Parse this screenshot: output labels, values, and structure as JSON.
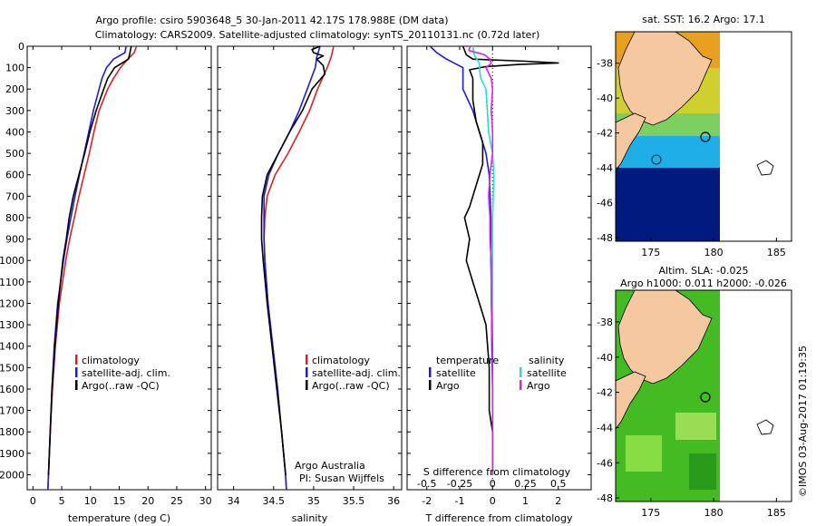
{
  "header": {
    "line1": "Argo profile: csiro 5903648_5 30-Jan-2011 42.17S 178.988E (DM data)",
    "line2": "Climatology: CARS2009. Satellite-adjusted climatology: synTS_20110131.nc (0.72d later)"
  },
  "colors": {
    "climatology": "#e02020",
    "satellite": "#1a1aee",
    "argo": "#000000",
    "temp_diff_argo": "#000000",
    "sal_satellite": "#22dddd",
    "sal_argo": "#dd22dd",
    "sst_warm": "#e8a020",
    "sst_cold": "#001a80",
    "sla_green": "#44bb22",
    "land": "#f5c8a0"
  },
  "chart_data": [
    {
      "id": "temperature",
      "type": "line",
      "xlabel": "temperature (deg C)",
      "ylabel": "",
      "xlim": [
        -1,
        31
      ],
      "ylim": [
        2070,
        0
      ],
      "x_ticks": [
        0,
        5,
        10,
        15,
        20,
        25,
        30
      ],
      "y_ticks": [
        0,
        100,
        200,
        300,
        400,
        500,
        600,
        700,
        800,
        900,
        1000,
        1100,
        1200,
        1300,
        1400,
        1500,
        1600,
        1700,
        1800,
        1900,
        2000
      ],
      "legend": [
        "climatology",
        "satellite-adj. clim.",
        "Argo(..raw -QC)"
      ],
      "legend_position": "bottom-right",
      "series": [
        {
          "name": "climatology",
          "color_key": "climatology",
          "depth": [
            0,
            30,
            60,
            100,
            150,
            200,
            300,
            400,
            500,
            600,
            700,
            800,
            900,
            1000,
            1200,
            1400,
            1600,
            1800,
            2000,
            2070
          ],
          "values": [
            18.0,
            17.6,
            16.5,
            15.2,
            14.0,
            13.0,
            11.5,
            10.6,
            9.8,
            8.9,
            8.0,
            7.2,
            6.4,
            5.7,
            4.6,
            3.9,
            3.4,
            3.0,
            2.7,
            2.6
          ]
        },
        {
          "name": "satellite-adj. clim.",
          "color_key": "satellite",
          "depth": [
            0,
            30,
            60,
            100,
            150,
            200,
            300,
            400,
            500,
            600,
            700,
            800,
            900,
            1000,
            1200,
            1400,
            1600,
            1800,
            2000,
            2070
          ],
          "values": [
            16.2,
            16.0,
            14.0,
            12.8,
            12.0,
            11.5,
            10.5,
            9.7,
            8.9,
            8.1,
            7.3,
            6.6,
            5.9,
            5.3,
            4.3,
            3.7,
            3.3,
            3.0,
            2.7,
            2.6
          ]
        },
        {
          "name": "Argo(..raw -QC)",
          "color_key": "argo",
          "depth": [
            0,
            25,
            60,
            100,
            150,
            200,
            300,
            400,
            500,
            600,
            700,
            800,
            900,
            1000,
            1200,
            1400,
            1600,
            1800,
            2000
          ],
          "values": [
            17.1,
            16.9,
            16.6,
            14.2,
            13.0,
            12.3,
            11.0,
            9.9,
            9.0,
            8.0,
            7.0,
            6.3,
            5.8,
            5.2,
            4.4,
            3.8,
            3.3,
            3.0,
            2.7
          ]
        }
      ]
    },
    {
      "id": "salinity",
      "type": "line",
      "xlabel": "salinity",
      "ylabel": "",
      "xlim": [
        33.8,
        36.1
      ],
      "ylim": [
        2070,
        0
      ],
      "x_ticks": [
        34,
        34.5,
        35,
        35.5,
        36
      ],
      "legend": [
        "climatology",
        "satellite-adj. clim.",
        "Argo(..raw -QC)"
      ],
      "legend_position": "bottom-right",
      "annotation": [
        "Argo Australia",
        "PI: Susan Wijffels"
      ],
      "series": [
        {
          "name": "climatology",
          "color_key": "climatology",
          "depth": [
            0,
            50,
            100,
            200,
            300,
            400,
            500,
            600,
            700,
            800,
            900,
            1000,
            1200,
            1400,
            1600,
            1800,
            2000,
            2070
          ],
          "values": [
            35.25,
            35.22,
            35.17,
            35.05,
            34.95,
            34.82,
            34.68,
            34.52,
            34.42,
            34.39,
            34.38,
            34.39,
            34.43,
            34.49,
            34.55,
            34.6,
            34.65,
            34.66
          ]
        },
        {
          "name": "satellite-adj. clim.",
          "color_key": "satellite",
          "depth": [
            0,
            50,
            100,
            200,
            300,
            400,
            500,
            600,
            700,
            800,
            900,
            1000,
            1200,
            1400,
            1600,
            1800,
            2000,
            2070
          ],
          "values": [
            35.08,
            35.04,
            35.02,
            34.92,
            34.82,
            34.7,
            34.56,
            34.44,
            34.38,
            34.38,
            34.38,
            34.39,
            34.43,
            34.49,
            34.55,
            34.6,
            34.65,
            34.66
          ]
        },
        {
          "name": "Argo(..raw -QC)",
          "color_key": "argo",
          "depth": [
            0,
            15,
            30,
            45,
            60,
            90,
            130,
            200,
            300,
            400,
            500,
            600,
            700,
            800,
            900,
            1000,
            1200,
            1400,
            1600,
            1800,
            2000
          ],
          "values": [
            35.08,
            34.98,
            35.0,
            35.12,
            35.04,
            35.12,
            35.14,
            34.98,
            34.86,
            34.7,
            34.56,
            34.42,
            34.36,
            34.35,
            34.35,
            34.37,
            34.42,
            34.48,
            34.54,
            34.6,
            34.65
          ]
        }
      ]
    },
    {
      "id": "differences",
      "type": "line",
      "xlabel": "T difference from climatology",
      "top_label": "S difference from climatology",
      "xlim": [
        -2.6,
        3.0
      ],
      "ylim": [
        2070,
        0
      ],
      "x_ticks": [
        -2,
        -1,
        0,
        1,
        2
      ],
      "s_ticks": [
        {
          "value": -0.5,
          "label": "-0.5"
        },
        {
          "value": -0.25,
          "label": "-0.25"
        },
        {
          "value": 0,
          "label": "0"
        },
        {
          "value": 0.25,
          "label": "0.25"
        },
        {
          "value": 0.5,
          "label": "0.5"
        }
      ],
      "s_scale": 4,
      "zero_line_style": "dotted",
      "legend_temp_title": "temperature",
      "legend_sal_title": "salinity",
      "legend_temp": [
        "satellite",
        "Argo"
      ],
      "legend_sal": [
        "satellite",
        "Argo"
      ],
      "series": [
        {
          "name": "satellite",
          "group": "temperature",
          "color_key": "satellite",
          "depth": [
            0,
            30,
            60,
            100,
            200,
            300,
            400,
            500,
            600,
            800,
            1000,
            1200,
            1400,
            1600,
            1800,
            2000
          ],
          "values": [
            -1.9,
            -1.7,
            -1.4,
            -0.9,
            -0.9,
            -0.6,
            -0.4,
            -0.2,
            -0.1,
            -0.05,
            -0.05,
            -0.03,
            -0.02,
            0.0,
            0.0,
            0.0
          ]
        },
        {
          "name": "Argo",
          "group": "temperature",
          "color_key": "temp_diff_argo",
          "depth": [
            0,
            40,
            60,
            70,
            78,
            85,
            95,
            110,
            150,
            250,
            350,
            450,
            550,
            650,
            750,
            800,
            900,
            1000,
            1100,
            1200,
            1300,
            1500,
            1700,
            1800,
            1900,
            2000
          ],
          "values": [
            -0.9,
            -0.8,
            -0.6,
            1.0,
            2.0,
            0.8,
            -0.2,
            -0.7,
            -0.6,
            -0.6,
            -0.5,
            -0.3,
            -0.3,
            -0.5,
            -0.7,
            -0.85,
            -0.7,
            -0.8,
            -0.6,
            -0.4,
            -0.2,
            -0.1,
            -0.1,
            0.0,
            0.0,
            0.0
          ]
        },
        {
          "name": "satellite",
          "group": "salinity",
          "color_key": "sal_satellite",
          "depth": [
            0,
            40,
            80,
            100,
            150,
            200,
            300,
            400,
            500,
            600,
            800,
            1000,
            1200,
            1400,
            1600,
            1800,
            2000
          ],
          "values": [
            -0.15,
            -0.14,
            -0.1,
            -0.1,
            -0.09,
            -0.05,
            -0.04,
            -0.03,
            0.0,
            0.01,
            0.0,
            0.0,
            0.0,
            0.0,
            0.0,
            0.0,
            0.0
          ]
        },
        {
          "name": "Argo",
          "group": "salinity",
          "color_key": "sal_argo",
          "depth": [
            0,
            20,
            40,
            60,
            80,
            100,
            150,
            200,
            300,
            400,
            500,
            600,
            700,
            800,
            900,
            1000,
            1200,
            1400,
            1600,
            1800,
            2000
          ],
          "values": [
            -0.17,
            -0.18,
            -0.06,
            -0.02,
            -0.01,
            -0.05,
            -0.01,
            0.0,
            -0.01,
            0.0,
            0.0,
            -0.02,
            -0.03,
            -0.02,
            -0.02,
            -0.01,
            -0.01,
            0.0,
            0.0,
            0.0,
            0.0
          ]
        }
      ]
    },
    {
      "id": "sst_map",
      "type": "heatmap",
      "title": "sat. SST: 16.2 Argo: 17.1",
      "x_ticks": [
        175,
        180,
        185
      ],
      "y_ticks": [
        -38,
        -40,
        -42,
        -44,
        -46,
        -48
      ],
      "xlim": [
        172.2,
        186.2
      ],
      "ylim": [
        -48.2,
        -36.2
      ],
      "data_extent_lon": [
        172.2,
        180
      ],
      "argo_location": [
        178.988,
        -42.17
      ]
    },
    {
      "id": "sla_map",
      "type": "heatmap",
      "title_line1": "Altim. SLA: -0.025",
      "title_line2": "Argo h1000: 0.011 h2000: -0.026",
      "x_ticks": [
        175,
        180,
        185
      ],
      "y_ticks": [
        -38,
        -40,
        -42,
        -44,
        -46,
        -48
      ],
      "xlim": [
        172.2,
        186.2
      ],
      "ylim": [
        -48.2,
        -36.2
      ],
      "data_extent_lon": [
        172.2,
        180
      ],
      "argo_location": [
        178.988,
        -42.17
      ]
    }
  ],
  "footer": {
    "timestamp": "©IMOS 03-Aug-2017 01:19:35"
  }
}
